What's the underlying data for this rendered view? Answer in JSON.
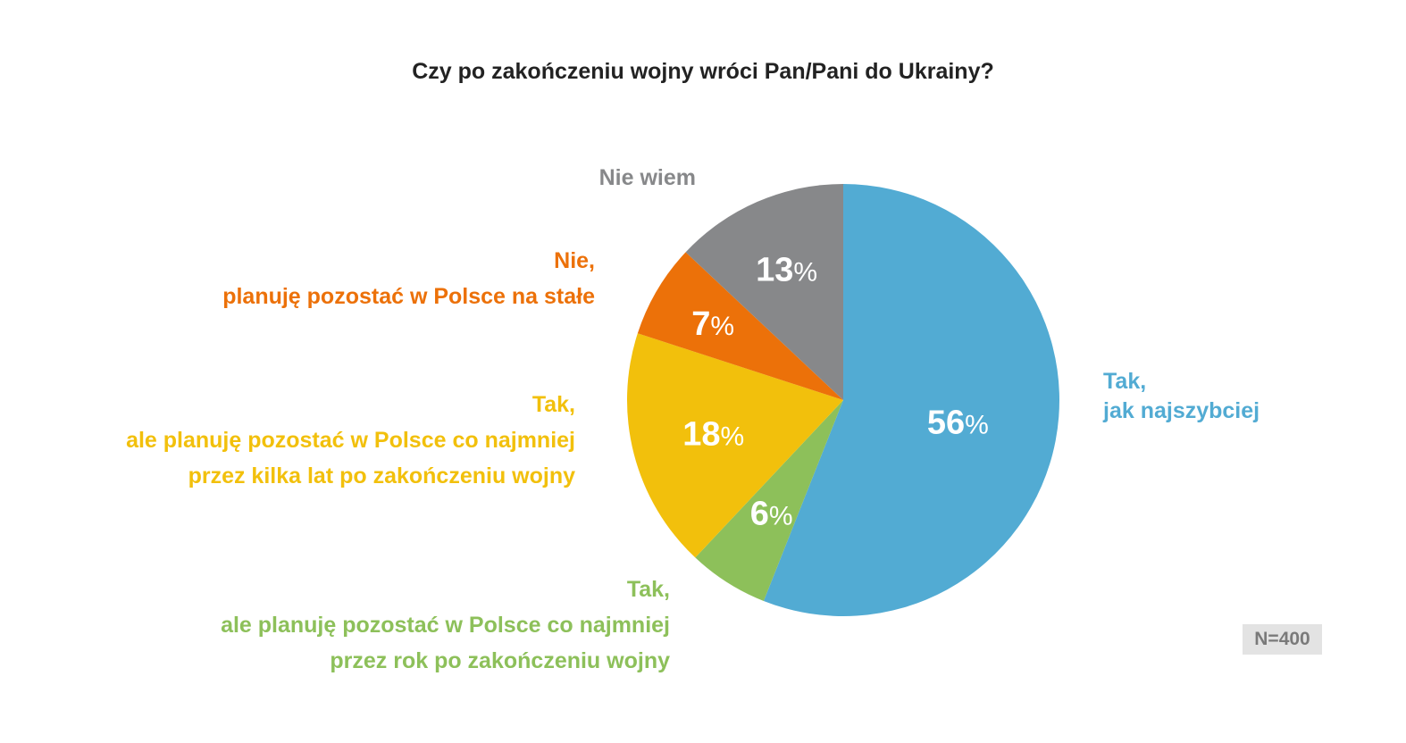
{
  "chart_data": {
    "type": "pie",
    "title": "Czy po zakończeniu wojny wróci Pan/Pani do Ukrainy?",
    "slices": [
      {
        "key": "tak-najszybciej",
        "value": 56,
        "color": "#52abd3",
        "label_lines": [
          "Tak,",
          "jak najszybciej"
        ]
      },
      {
        "key": "tak-rok",
        "value": 6,
        "color": "#8dc05a",
        "label_lines": [
          "Tak,",
          "ale planuję pozostać w Polsce co najmniej",
          "przez rok po zakończeniu wojny"
        ]
      },
      {
        "key": "tak-kilka-lat",
        "value": 18,
        "color": "#f2c00c",
        "label_lines": [
          "Tak,",
          "ale planuję pozostać w Polsce co najmniej",
          "przez kilka lat po zakończeniu wojny"
        ]
      },
      {
        "key": "nie",
        "value": 7,
        "color": "#ec7109",
        "label_lines": [
          "Nie,",
          "planuję pozostać w Polsce na stałe"
        ]
      },
      {
        "key": "nie-wiem",
        "value": 13,
        "color": "#87888a",
        "label_lines": [
          "Nie wiem"
        ]
      }
    ],
    "value_suffix": "%",
    "sample_size": "N=400"
  }
}
